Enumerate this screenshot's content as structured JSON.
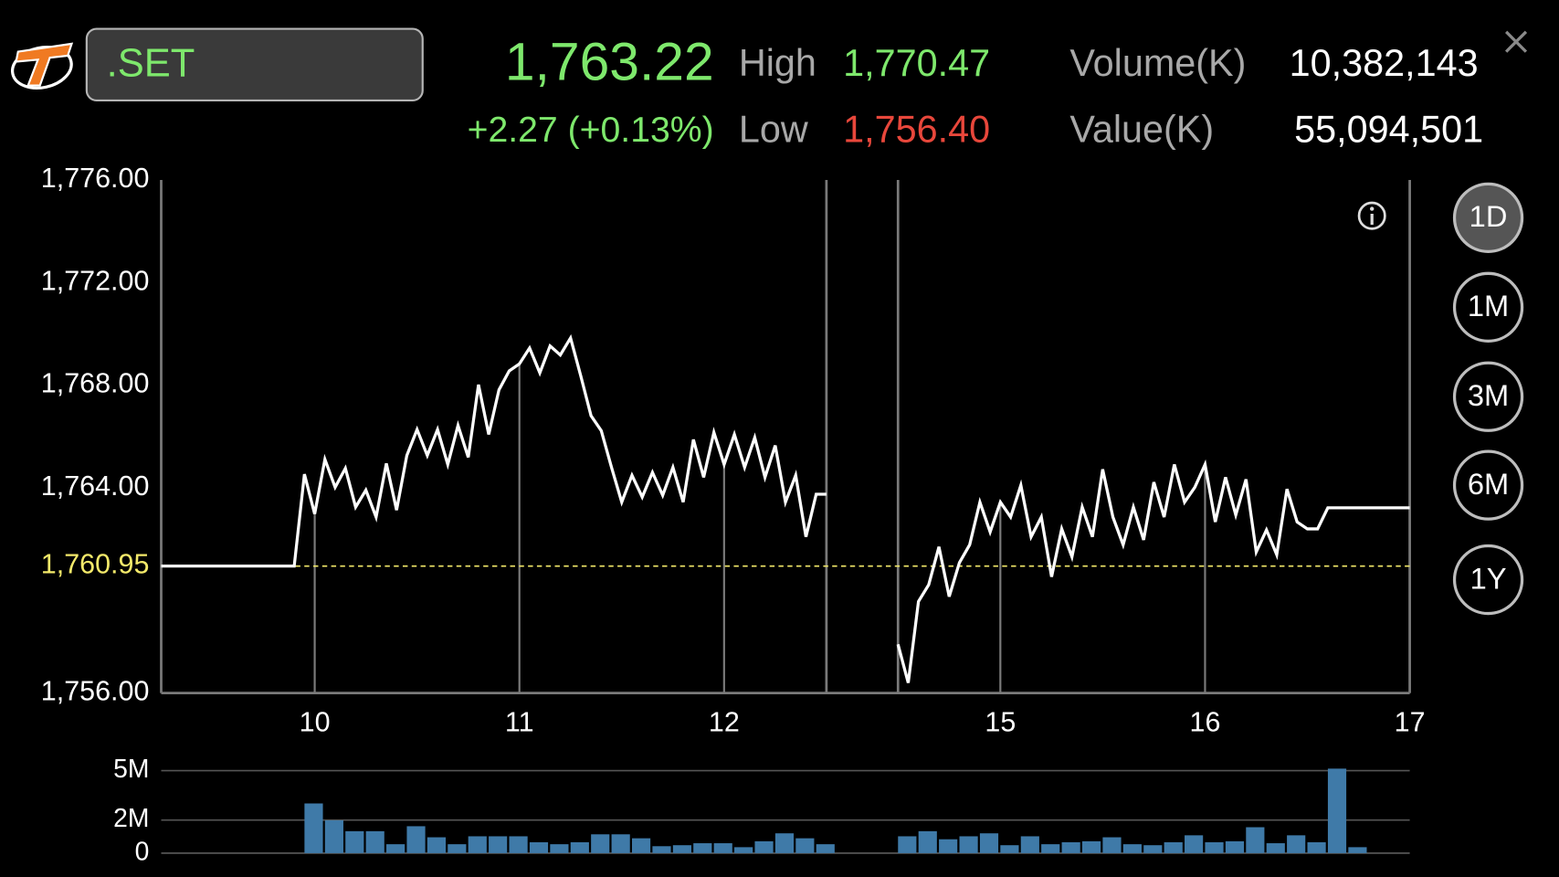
{
  "header": {
    "symbol": ".SET",
    "last": "1,763.22",
    "change": "+2.27 (+0.13%)",
    "high_label": "High",
    "high": "1,770.47",
    "low_label": "Low",
    "low": "1,756.40",
    "volume_label": "Volume(K)",
    "volume": "10,382,143",
    "value_label": "Value(K)",
    "value": "55,094,501"
  },
  "periods": [
    "1D",
    "1M",
    "3M",
    "6M",
    "1Y"
  ],
  "selected_period_index": 0,
  "chart_data": [
    {
      "type": "line",
      "color": "#ffffff",
      "x": [
        9.25,
        9.9,
        9.95,
        10.0,
        10.05,
        10.1,
        10.15,
        10.2,
        10.25,
        10.3,
        10.35,
        10.4,
        10.45,
        10.5,
        10.55,
        10.6,
        10.65,
        10.7,
        10.75,
        10.8,
        10.85,
        10.9,
        10.95,
        11.0,
        11.05,
        11.1,
        11.15,
        11.2,
        11.25,
        11.3,
        11.35,
        11.4,
        11.45,
        11.5,
        11.55,
        11.6,
        11.65,
        11.7,
        11.75,
        11.8,
        11.85,
        11.9,
        11.95,
        12.0,
        12.05,
        12.1,
        12.15,
        12.2,
        12.25,
        12.3,
        12.35,
        12.4,
        12.45,
        12.5,
        null,
        14.5,
        14.55,
        14.6,
        14.65,
        14.7,
        14.75,
        14.8,
        14.85,
        14.9,
        14.95,
        15.0,
        15.05,
        15.1,
        15.15,
        15.2,
        15.25,
        15.3,
        15.35,
        15.4,
        15.45,
        15.5,
        15.55,
        15.6,
        15.65,
        15.7,
        15.75,
        15.8,
        15.85,
        15.9,
        15.95,
        16.0,
        16.05,
        16.1,
        16.15,
        16.2,
        16.25,
        16.3,
        16.35,
        16.4,
        16.45,
        16.5,
        16.55,
        16.6,
        17.0
      ],
      "values": [
        1760.95,
        1760.95,
        1764.53,
        1762.98,
        1765.11,
        1764.02,
        1764.76,
        1763.25,
        1763.91,
        1762.86,
        1764.95,
        1763.13,
        1765.26,
        1766.27,
        1765.26,
        1766.27,
        1764.91,
        1766.43,
        1765.19,
        1768.02,
        1766.08,
        1767.82,
        1768.56,
        1768.83,
        1769.45,
        1768.48,
        1769.53,
        1769.18,
        1769.84,
        1768.36,
        1766.81,
        1766.23,
        1764.8,
        1763.44,
        1764.49,
        1763.64,
        1764.6,
        1763.71,
        1764.8,
        1763.44,
        1765.88,
        1764.41,
        1766.16,
        1764.91,
        1766.08,
        1764.8,
        1765.96,
        1764.41,
        1765.65,
        1763.44,
        1764.49,
        1762.09,
        1763.75,
        1763.75,
        null,
        1757.9,
        1756.4,
        1759.57,
        1760.22,
        1761.7,
        1759.76,
        1761.08,
        1761.78,
        1763.44,
        1762.28,
        1763.44,
        1762.86,
        1764.1,
        1762.09,
        1762.86,
        1760.53,
        1762.4,
        1761.31,
        1763.25,
        1762.09,
        1764.72,
        1762.86,
        1761.78,
        1763.25,
        1761.97,
        1764.22,
        1762.86,
        1764.91,
        1763.44,
        1764.02,
        1764.91,
        1762.67,
        1764.41,
        1762.94,
        1764.33,
        1761.5,
        1762.36,
        1761.39,
        1763.95,
        1762.67,
        1762.4,
        1762.4,
        1763.22,
        1763.22
      ],
      "xlim": [
        9.25,
        17
      ],
      "x_breaks": [
        [
          12.5,
          14.5
        ]
      ],
      "xticks": [
        10,
        11,
        12,
        15,
        16,
        17
      ],
      "ylim": [
        1756,
        1776
      ],
      "yticks": [
        {
          "value": 1756,
          "label": "1,756.00"
        },
        {
          "value": 1764,
          "label": "1,764.00"
        },
        {
          "value": 1768,
          "label": "1,768.00"
        },
        {
          "value": 1772,
          "label": "1,772.00"
        },
        {
          "value": 1776,
          "label": "1,776.00"
        }
      ],
      "ref_line": {
        "value": 1760.95,
        "label": "1,760.95",
        "color": "#f3e96a"
      }
    },
    {
      "type": "bar",
      "color": "#3f7aa8",
      "x": [
        9.95,
        10.05,
        10.15,
        10.25,
        10.35,
        10.45,
        10.55,
        10.65,
        10.75,
        10.85,
        10.95,
        11.05,
        11.15,
        11.25,
        11.35,
        11.45,
        11.55,
        11.65,
        11.75,
        11.85,
        11.95,
        12.05,
        12.15,
        12.25,
        12.35,
        12.45,
        14.5,
        14.6,
        14.7,
        14.8,
        14.9,
        15.0,
        15.1,
        15.2,
        15.3,
        15.4,
        15.5,
        15.6,
        15.7,
        15.8,
        15.9,
        16.0,
        16.1,
        16.2,
        16.3,
        16.4,
        16.5,
        16.6,
        16.7
      ],
      "values": [
        3010000,
        1990000,
        1330000,
        1330000,
        540000,
        1630000,
        960000,
        540000,
        1020000,
        1020000,
        1020000,
        660000,
        540000,
        660000,
        1140000,
        1140000,
        900000,
        420000,
        480000,
        600000,
        600000,
        360000,
        720000,
        1200000,
        900000,
        540000,
        1020000,
        1330000,
        840000,
        1020000,
        1200000,
        480000,
        1020000,
        540000,
        660000,
        720000,
        960000,
        540000,
        480000,
        660000,
        1080000,
        660000,
        720000,
        1570000,
        600000,
        1080000,
        660000,
        5120000,
        360000
      ],
      "xlim": [
        9.25,
        17
      ],
      "x_breaks": [
        [
          12.5,
          14.5
        ]
      ],
      "ylim": [
        0,
        5000000
      ],
      "yticks": [
        0,
        {
          "value": 2000000,
          "label": "2M"
        },
        {
          "value": 5000000,
          "label": "5M"
        }
      ],
      "grid": true
    }
  ]
}
